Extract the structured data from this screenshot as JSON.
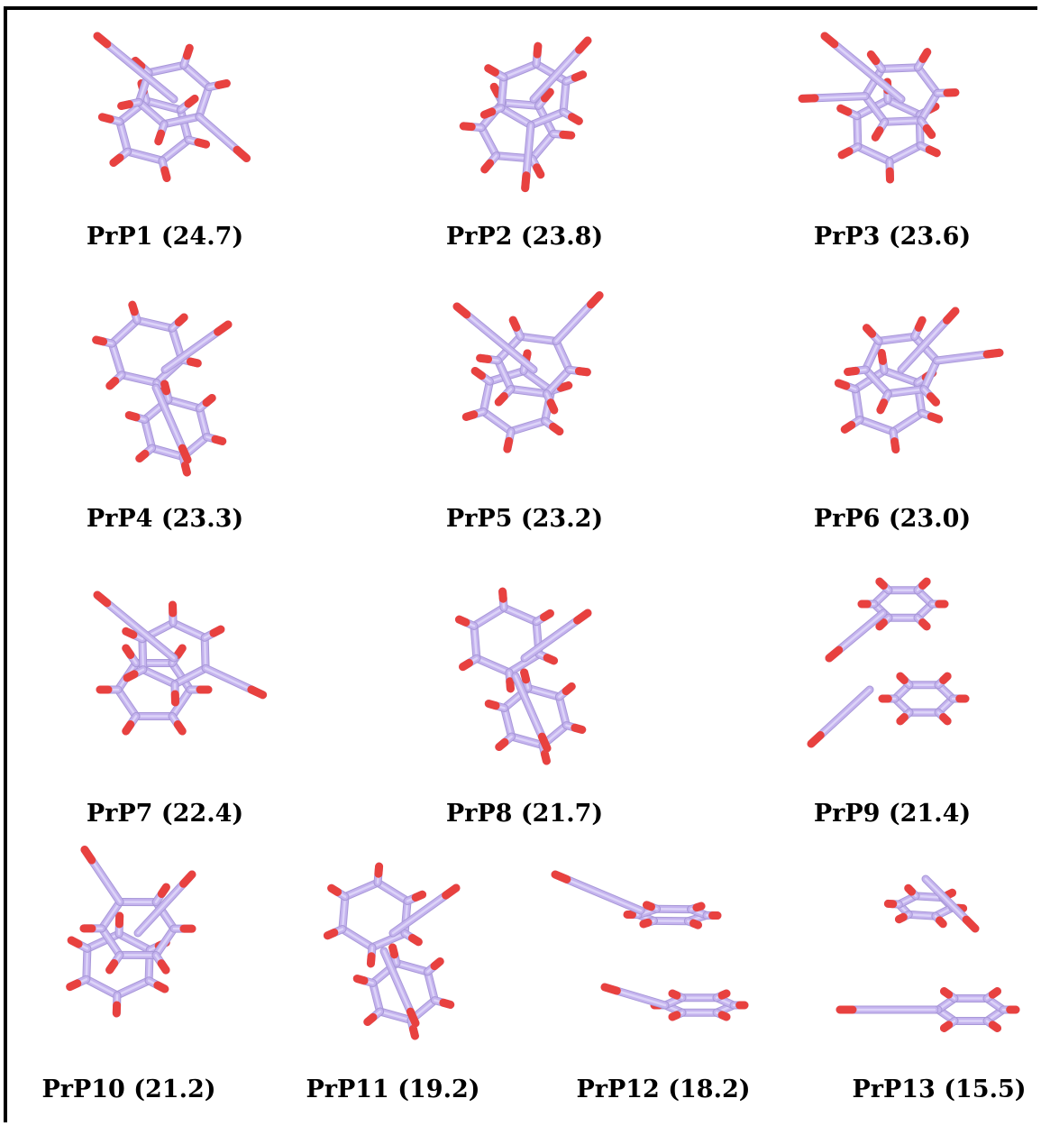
{
  "colors": {
    "bond": "#c4b3ee",
    "bond_edge": "#a898d8",
    "bond_highlight": "#e3dcfb",
    "cyan_tint": "#9fd0ec",
    "end_atom": "#e8413f",
    "end_atom_light": "#ff8a80",
    "frame": "#000000",
    "text": "#000000"
  },
  "structures": [
    {
      "id": "PrP1",
      "label": "PrP1 (24.7)",
      "icon": "dimer-stacked-rings-icon"
    },
    {
      "id": "PrP2",
      "label": "PrP2 (23.8)",
      "icon": "dimer-stacked-rings-icon"
    },
    {
      "id": "PrP3",
      "label": "PrP3 (23.6)",
      "icon": "dimer-stacked-rings-icon"
    },
    {
      "id": "PrP4",
      "label": "PrP4 (23.3)",
      "icon": "dimer-offset-rings-icon"
    },
    {
      "id": "PrP5",
      "label": "PrP5 (23.2)",
      "icon": "dimer-stacked-rings-icon"
    },
    {
      "id": "PrP6",
      "label": "PrP6 (23.0)",
      "icon": "dimer-stacked-rings-icon"
    },
    {
      "id": "PrP7",
      "label": "PrP7 (22.4)",
      "icon": "dimer-stacked-rings-icon"
    },
    {
      "id": "PrP8",
      "label": "PrP8 (21.7)",
      "icon": "dimer-offset-rings-icon"
    },
    {
      "id": "PrP9",
      "label": "PrP9 (21.4)",
      "icon": "dimer-separated-rings-icon"
    },
    {
      "id": "PrP10",
      "label": "PrP10 (21.2)",
      "icon": "dimer-stacked-rings-icon"
    },
    {
      "id": "PrP11",
      "label": "PrP11 (19.2)",
      "icon": "dimer-offset-rings-icon"
    },
    {
      "id": "PrP12",
      "label": "PrP12 (18.2)",
      "icon": "dimer-edge-on-rings-icon"
    },
    {
      "id": "PrP13",
      "label": "PrP13 (15.5)",
      "icon": "dimer-edge-on-rings-icon"
    }
  ]
}
